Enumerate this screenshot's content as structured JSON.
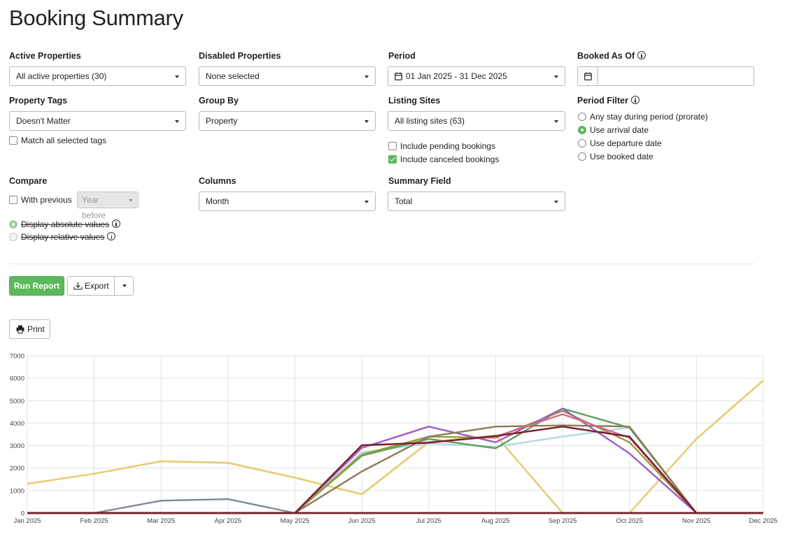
{
  "page": {
    "title": "Booking Summary"
  },
  "filters": {
    "active_properties": {
      "label": "Active Properties",
      "value": "All active properties (30)"
    },
    "disabled_properties": {
      "label": "Disabled Properties",
      "value": "None selected"
    },
    "period": {
      "label": "Period",
      "value": "01 Jan 2025 - 31 Dec 2025"
    },
    "booked_as_of": {
      "label": "Booked As Of",
      "value": ""
    },
    "property_tags": {
      "label": "Property Tags",
      "value": "Doesn't Matter",
      "match_all_label": "Match all selected tags",
      "match_all_checked": false
    },
    "group_by": {
      "label": "Group By",
      "value": "Property"
    },
    "listing_sites": {
      "label": "Listing Sites",
      "value": "All listing sites (63)"
    },
    "include_pending": {
      "label": "Include pending bookings",
      "checked": false
    },
    "include_canceled": {
      "label": "Include canceled bookings",
      "checked": true
    },
    "period_filter": {
      "label": "Period Filter",
      "options": [
        {
          "label": "Any stay during period (prorate)",
          "selected": false
        },
        {
          "label": "Use arrival date",
          "selected": true
        },
        {
          "label": "Use departure date",
          "selected": false
        },
        {
          "label": "Use booked date",
          "selected": false
        }
      ]
    },
    "compare": {
      "label": "Compare",
      "with_previous_label": "With previous",
      "with_previous_checked": false,
      "year_before": "Year before"
    },
    "display_absolute": {
      "label": "Display absolute values",
      "selected": true
    },
    "display_relative": {
      "label": "Display relative values",
      "selected": false
    },
    "columns": {
      "label": "Columns",
      "value": "Month"
    },
    "summary_field": {
      "label": "Summary Field",
      "value": "Total"
    }
  },
  "actions": {
    "run_report": "Run Report",
    "export": "Export",
    "print": "Print"
  },
  "colors": {
    "accent": "#5cb85c"
  },
  "chart_data": {
    "type": "line",
    "categories": [
      "Jan 2025",
      "Feb 2025",
      "Mar 2025",
      "Apr 2025",
      "May 2025",
      "Jun 2025",
      "Jul 2025",
      "Aug 2025",
      "Sep 2025",
      "Oct 2025",
      "Nov 2025",
      "Dec 2025"
    ],
    "yticks": [
      0,
      1000,
      2000,
      3000,
      4000,
      5000,
      6000,
      7000
    ],
    "ylim": [
      0,
      7000
    ],
    "grid": true,
    "legend": "none",
    "series": [
      {
        "color": "#e8c56c",
        "values": [
          1300,
          1750,
          2300,
          2230,
          1570,
          830,
          3150,
          3450,
          0,
          0,
          3300,
          5900
        ]
      },
      {
        "color": "#e5cd76",
        "values": [
          1300,
          1750,
          2310,
          2240,
          1580,
          840,
          3160,
          3460,
          0,
          0,
          3310,
          5910
        ]
      },
      {
        "color": "#7d8b95",
        "values": [
          0,
          0,
          550,
          620,
          0,
          0,
          0,
          0,
          0,
          0,
          0,
          0
        ]
      },
      {
        "color": "#b5d7e6",
        "values": [
          0,
          0,
          0,
          0,
          0,
          2700,
          3100,
          2950,
          3400,
          3800,
          0,
          0
        ]
      },
      {
        "color": "#5ba05b",
        "values": [
          0,
          0,
          0,
          0,
          0,
          2550,
          3300,
          2880,
          4650,
          3800,
          0,
          0
        ]
      },
      {
        "color": "#9a9a3a",
        "values": [
          0,
          0,
          0,
          0,
          0,
          2600,
          3400,
          3350,
          4550,
          3150,
          0,
          0
        ]
      },
      {
        "color": "#a05dc9",
        "values": [
          0,
          0,
          0,
          0,
          0,
          2900,
          3850,
          3150,
          4650,
          2650,
          0,
          0
        ]
      },
      {
        "color": "#8d7b58",
        "values": [
          0,
          0,
          0,
          0,
          0,
          1850,
          3400,
          3850,
          3900,
          3850,
          0,
          0
        ]
      },
      {
        "color": "#d56a88",
        "values": [
          0,
          0,
          0,
          0,
          0,
          3000,
          3150,
          3400,
          4400,
          3350,
          0,
          0
        ]
      },
      {
        "color": "#7a1f2e",
        "values": [
          0,
          0,
          0,
          0,
          0,
          3020,
          3130,
          3430,
          3850,
          3400,
          0,
          0
        ]
      },
      {
        "color": "#222222",
        "values": [
          0,
          0,
          0,
          0,
          0,
          0,
          0,
          0,
          0,
          0,
          0,
          0
        ]
      },
      {
        "color": "#7a1f2e",
        "values": [
          0,
          0,
          0,
          0,
          0,
          0,
          0,
          0,
          0,
          0,
          0,
          0
        ]
      }
    ]
  }
}
